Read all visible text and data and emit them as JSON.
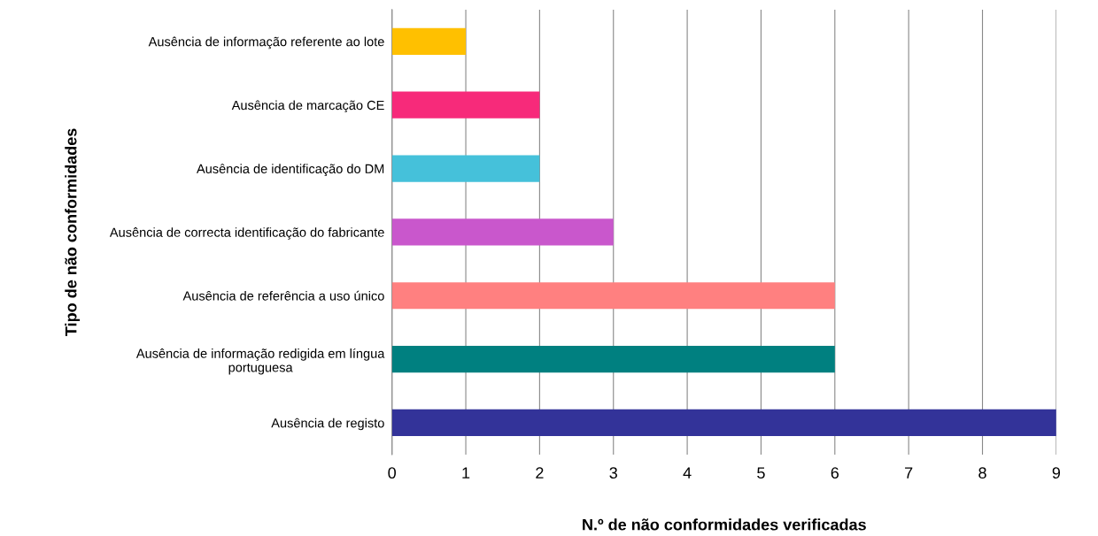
{
  "chart_data": {
    "type": "bar",
    "orientation": "horizontal",
    "xlabel": "N.º de não conformidades verificadas",
    "ylabel": "Tipo de não conformidades",
    "categories": [
      "Ausência de informação referente ao lote",
      "Ausência de marcação CE",
      "Ausência de identificação do DM",
      "Ausência de correcta identificação do fabricante",
      "Ausência de referência a uso único",
      "Ausência de informação redigida em língua\nportuguesa",
      "Ausência de registo"
    ],
    "values": [
      1,
      2,
      2,
      3,
      6,
      6,
      9
    ],
    "colors": [
      "#ffc000",
      "#f72a7a",
      "#45c1da",
      "#c957cc",
      "#ff8080",
      "#008080",
      "#333399"
    ],
    "xlim": [
      0,
      9
    ],
    "xticks": [
      0,
      1,
      2,
      3,
      4,
      5,
      6,
      7,
      8,
      9
    ],
    "grid": "x",
    "legend": false
  }
}
